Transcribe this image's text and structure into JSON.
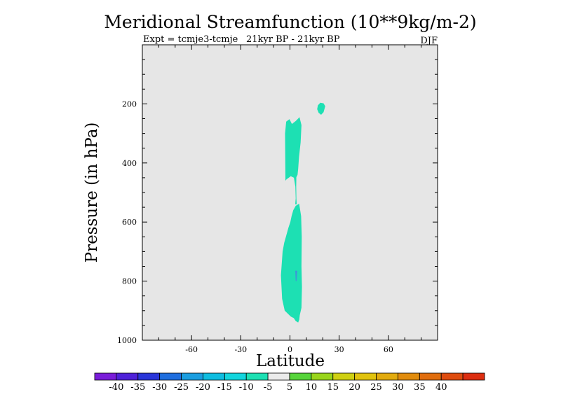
{
  "chart_data": {
    "type": "contour",
    "title": "Meridional Streamfunction (10**9kg/m-2)",
    "subtitle_left": "Expt = tcmje3-tcmje",
    "subtitle_center": "21kyr BP - 21kyr BP",
    "subtitle_right": "DJF",
    "xlabel": "Latitude",
    "ylabel": "Pressure (in hPa)",
    "xlim": [
      -90,
      90
    ],
    "ylim": [
      1000,
      0
    ],
    "x_ticks": [
      -60,
      -30,
      0,
      30,
      60
    ],
    "y_ticks": [
      200,
      400,
      600,
      800,
      1000
    ],
    "background_color": "#e6e6e6",
    "grid": false,
    "contours": [
      {
        "name": "upper-column",
        "level": "-10 to -5",
        "color": "#1de0b3",
        "points": [
          [
            -2.8,
            460
          ],
          [
            -3.0,
            300
          ],
          [
            -2.3,
            260
          ],
          [
            -0.3,
            252
          ],
          [
            1.2,
            268
          ],
          [
            3.5,
            258
          ],
          [
            5.8,
            245
          ],
          [
            7,
            272
          ],
          [
            6.5,
            330
          ],
          [
            5.5,
            380
          ],
          [
            5.0,
            420
          ],
          [
            4.6,
            440
          ],
          [
            3.9,
            448
          ],
          [
            3.8,
            480
          ],
          [
            3.9,
            520
          ],
          [
            4.1,
            540
          ],
          [
            3.2,
            540
          ],
          [
            3.5,
            520
          ],
          [
            3.3,
            480
          ],
          [
            2.4,
            450
          ],
          [
            0.5,
            445
          ],
          [
            -2,
            455
          ]
        ]
      },
      {
        "name": "lower-column",
        "level": "-10 to -5",
        "color": "#1de0b3",
        "points": [
          [
            2.0,
            560
          ],
          [
            3.5,
            545
          ],
          [
            5.6,
            538
          ],
          [
            6.8,
            580
          ],
          [
            7.2,
            650
          ],
          [
            7.0,
            750
          ],
          [
            7.3,
            820
          ],
          [
            7.0,
            890
          ],
          [
            6.0,
            915
          ],
          [
            5.7,
            930
          ],
          [
            5.0,
            940
          ],
          [
            3.5,
            935
          ],
          [
            2.3,
            925
          ],
          [
            0.5,
            920
          ],
          [
            -3.2,
            900
          ],
          [
            -4.8,
            860
          ],
          [
            -5.5,
            780
          ],
          [
            -4.5,
            700
          ],
          [
            -3.5,
            670
          ],
          [
            -2.5,
            650
          ],
          [
            -1,
            620
          ],
          [
            0.2,
            600
          ],
          [
            1.0,
            580
          ]
        ]
      },
      {
        "name": "small-patch",
        "level": "-10 to -5",
        "color": "#1de0b3",
        "points": [
          [
            17.0,
            205
          ],
          [
            18.5,
            196
          ],
          [
            20.5,
            198
          ],
          [
            21.5,
            208
          ],
          [
            20.5,
            228
          ],
          [
            19.0,
            237
          ],
          [
            17.5,
            230
          ],
          [
            16.6,
            218
          ]
        ]
      },
      {
        "name": "core-patch",
        "level": "-15 to -10",
        "color": "#3c9ad6",
        "points": [
          [
            3.2,
            765
          ],
          [
            4.5,
            765
          ],
          [
            4.0,
            800
          ],
          [
            3.5,
            800
          ]
        ]
      }
    ],
    "colorbar": {
      "colors": [
        "#7a1dd9",
        "#4f22d9",
        "#2a36d9",
        "#1f6ede",
        "#1b9ee0",
        "#0fbde0",
        "#13d5dd",
        "#1de0b3",
        "#ebebeb",
        "#56d43b",
        "#99d51c",
        "#cfd013",
        "#e1c30f",
        "#e2ab0f",
        "#e18c0e",
        "#e06d0e",
        "#de4c0f",
        "#dc2e10"
      ],
      "labels": [
        "-40",
        "-35",
        "-30",
        "-25",
        "-20",
        "-15",
        "-10",
        "-5",
        "5",
        "10",
        "15",
        "20",
        "25",
        "30",
        "35",
        "40"
      ]
    }
  }
}
